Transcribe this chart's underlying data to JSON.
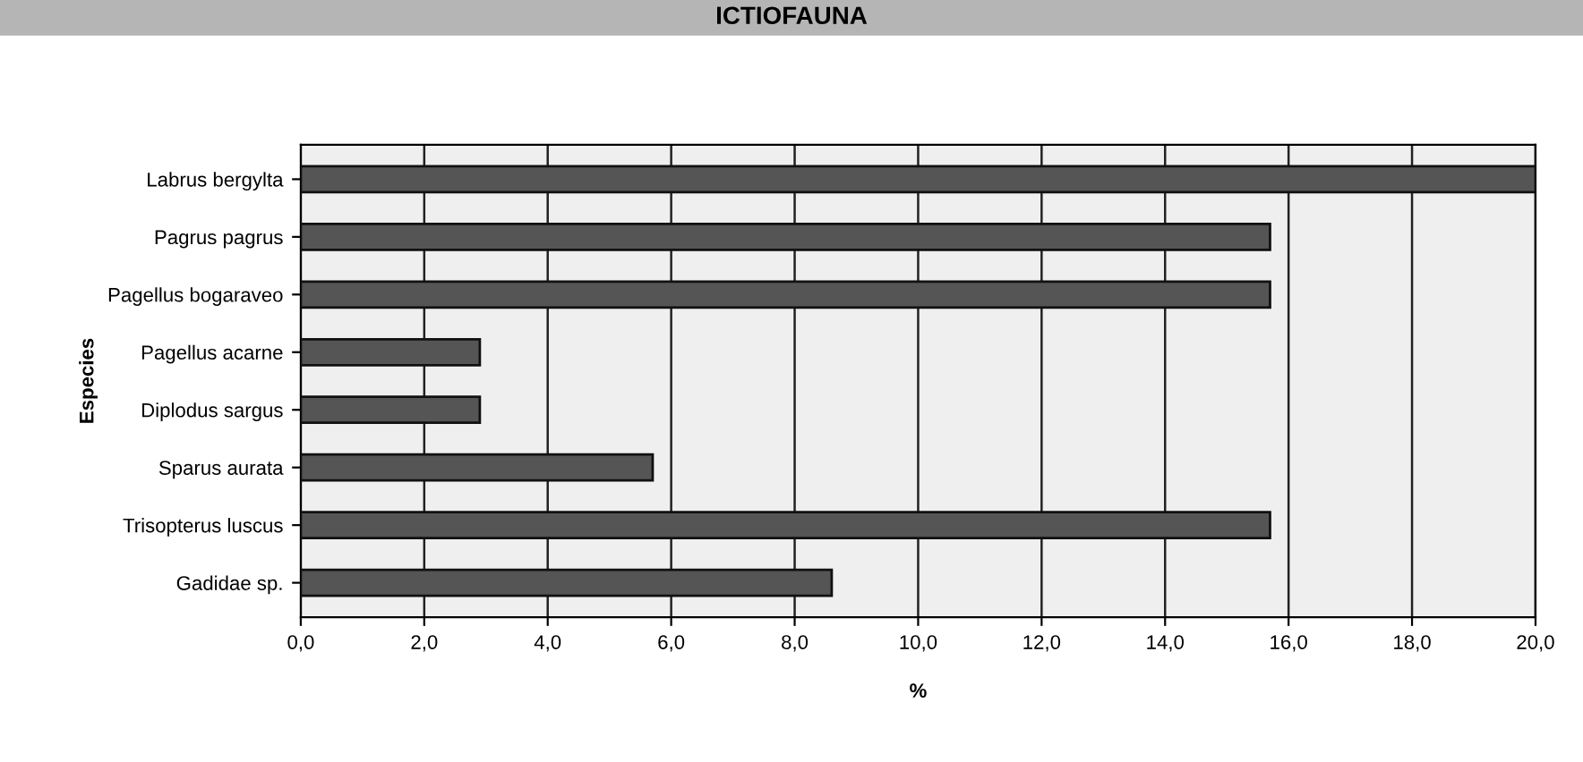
{
  "chart_data": {
    "type": "bar",
    "orientation": "horizontal",
    "title": "ICTIOFAUNA",
    "xlabel": "%",
    "ylabel": "Especies",
    "categories": [
      "Labrus bergylta",
      "Pagrus pagrus",
      "Pagellus bogaraveo",
      "Pagellus acarne",
      "Diplodus sargus",
      "Sparus aurata",
      "Trisopterus luscus",
      "Gadidae sp."
    ],
    "values": [
      20.0,
      15.7,
      15.7,
      2.9,
      2.9,
      5.7,
      15.7,
      8.6
    ],
    "color": "#555555",
    "xlim": [
      0,
      20
    ],
    "xticks": [
      {
        "value": 0,
        "label": "0,0"
      },
      {
        "value": 2,
        "label": "2,0"
      },
      {
        "value": 4,
        "label": "4,0"
      },
      {
        "value": 6,
        "label": "6,0"
      },
      {
        "value": 8,
        "label": "8,0"
      },
      {
        "value": 10,
        "label": "10,0"
      },
      {
        "value": 12,
        "label": "12,0"
      },
      {
        "value": 14,
        "label": "14,0"
      },
      {
        "value": 16,
        "label": "16,0"
      },
      {
        "value": 18,
        "label": "18,0"
      },
      {
        "value": 20,
        "label": "20,0"
      }
    ],
    "grid": "x",
    "legend": false
  }
}
